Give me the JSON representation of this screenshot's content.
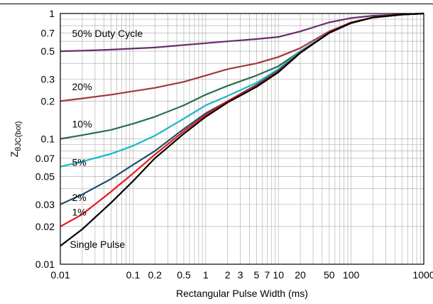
{
  "chart_data": {
    "type": "line",
    "xlabel": "Rectangular Pulse Width (ms)",
    "ylabel_main": "Z",
    "ylabel_sub": "θJC(bot)",
    "x_scale": "log",
    "y_scale": "log",
    "xlim": [
      0.01,
      1000
    ],
    "ylim": [
      0.01,
      1
    ],
    "grid": true,
    "x_ticks": [
      {
        "value": 0.01,
        "label": "0.01"
      },
      {
        "value": 0.1,
        "label": "0.1"
      },
      {
        "value": 0.2,
        "label": "0.2"
      },
      {
        "value": 0.5,
        "label": "0.5"
      },
      {
        "value": 1,
        "label": "1"
      },
      {
        "value": 2,
        "label": "2"
      },
      {
        "value": 3,
        "label": "3"
      },
      {
        "value": 5,
        "label": "5"
      },
      {
        "value": 7,
        "label": "7"
      },
      {
        "value": 10,
        "label": "10"
      },
      {
        "value": 20,
        "label": "20"
      },
      {
        "value": 50,
        "label": "50"
      },
      {
        "value": 100,
        "label": "100"
      },
      {
        "value": 1000,
        "label": "1000"
      }
    ],
    "y_ticks": [
      {
        "value": 0.01,
        "label": "0.01"
      },
      {
        "value": 0.02,
        "label": "0.02"
      },
      {
        "value": 0.03,
        "label": "0.03"
      },
      {
        "value": 0.05,
        "label": "0.05"
      },
      {
        "value": 0.07,
        "label": "0.07"
      },
      {
        "value": 0.1,
        "label": "0.1"
      },
      {
        "value": 0.2,
        "label": "0.2"
      },
      {
        "value": 0.3,
        "label": "0.3"
      },
      {
        "value": 0.5,
        "label": "0.5"
      },
      {
        "value": 0.7,
        "label": "0.7"
      },
      {
        "value": 1,
        "label": "1"
      }
    ],
    "series": [
      {
        "name": "50% Duty Cycle",
        "color": "#6a2c70",
        "label_at": {
          "x": 0.0145,
          "y": 0.65
        },
        "x": [
          0.01,
          0.02,
          0.05,
          0.1,
          0.2,
          0.5,
          1,
          2,
          5,
          10,
          20,
          50,
          100,
          200,
          500,
          1000
        ],
        "y": [
          0.5,
          0.505,
          0.515,
          0.525,
          0.535,
          0.56,
          0.58,
          0.6,
          0.625,
          0.65,
          0.72,
          0.85,
          0.92,
          0.96,
          0.985,
          1.0
        ]
      },
      {
        "name": "20%",
        "color": "#a0393f",
        "label_at": {
          "x": 0.0145,
          "y": 0.245
        },
        "x": [
          0.01,
          0.02,
          0.05,
          0.1,
          0.2,
          0.5,
          1,
          2,
          5,
          10,
          20,
          50,
          100,
          200,
          500,
          1000
        ],
        "y": [
          0.2,
          0.21,
          0.225,
          0.24,
          0.255,
          0.285,
          0.32,
          0.36,
          0.4,
          0.45,
          0.53,
          0.72,
          0.85,
          0.93,
          0.98,
          1.0
        ]
      },
      {
        "name": "10%",
        "color": "#2e6b4f",
        "label_at": {
          "x": 0.0145,
          "y": 0.123
        },
        "x": [
          0.01,
          0.02,
          0.05,
          0.1,
          0.2,
          0.5,
          1,
          2,
          5,
          10,
          20,
          50,
          100,
          200,
          500,
          1000
        ],
        "y": [
          0.1,
          0.107,
          0.118,
          0.132,
          0.15,
          0.185,
          0.225,
          0.265,
          0.32,
          0.38,
          0.5,
          0.7,
          0.84,
          0.93,
          0.98,
          1.0
        ]
      },
      {
        "name": "5%",
        "color": "#17b8c8",
        "label_at": {
          "x": 0.0145,
          "y": 0.061
        },
        "x": [
          0.01,
          0.02,
          0.05,
          0.1,
          0.2,
          0.5,
          1,
          2,
          5,
          10,
          20,
          50,
          100,
          200,
          500,
          1000
        ],
        "y": [
          0.06,
          0.066,
          0.076,
          0.088,
          0.106,
          0.145,
          0.185,
          0.22,
          0.28,
          0.36,
          0.5,
          0.7,
          0.84,
          0.93,
          0.98,
          1.0
        ]
      },
      {
        "name": "2%",
        "color": "#1f4e6b",
        "label_at": {
          "x": 0.0145,
          "y": 0.032
        },
        "x": [
          0.01,
          0.02,
          0.05,
          0.1,
          0.2,
          0.5,
          1,
          2,
          5,
          10,
          20,
          50,
          100,
          200,
          500,
          1000
        ],
        "y": [
          0.03,
          0.036,
          0.048,
          0.062,
          0.08,
          0.12,
          0.16,
          0.2,
          0.27,
          0.35,
          0.49,
          0.7,
          0.84,
          0.93,
          0.98,
          1.0
        ]
      },
      {
        "name": "1%",
        "color": "#e8161b",
        "label_at": {
          "x": 0.0145,
          "y": 0.0245
        },
        "x": [
          0.01,
          0.02,
          0.05,
          0.1,
          0.2,
          0.5,
          1,
          2,
          5,
          10,
          20,
          50,
          100,
          200,
          500,
          1000
        ],
        "y": [
          0.02,
          0.025,
          0.038,
          0.053,
          0.075,
          0.115,
          0.155,
          0.2,
          0.265,
          0.345,
          0.49,
          0.7,
          0.84,
          0.93,
          0.98,
          1.0
        ]
      },
      {
        "name": "Single Pulse",
        "color": "#000000",
        "label_at": {
          "x": 0.0135,
          "y": 0.0135
        },
        "x": [
          0.01,
          0.02,
          0.05,
          0.1,
          0.2,
          0.5,
          1,
          2,
          5,
          10,
          20,
          50,
          100,
          200,
          500,
          1000
        ],
        "y": [
          0.014,
          0.019,
          0.031,
          0.046,
          0.07,
          0.11,
          0.15,
          0.195,
          0.26,
          0.34,
          0.485,
          0.7,
          0.84,
          0.93,
          0.98,
          1.0
        ]
      }
    ]
  }
}
